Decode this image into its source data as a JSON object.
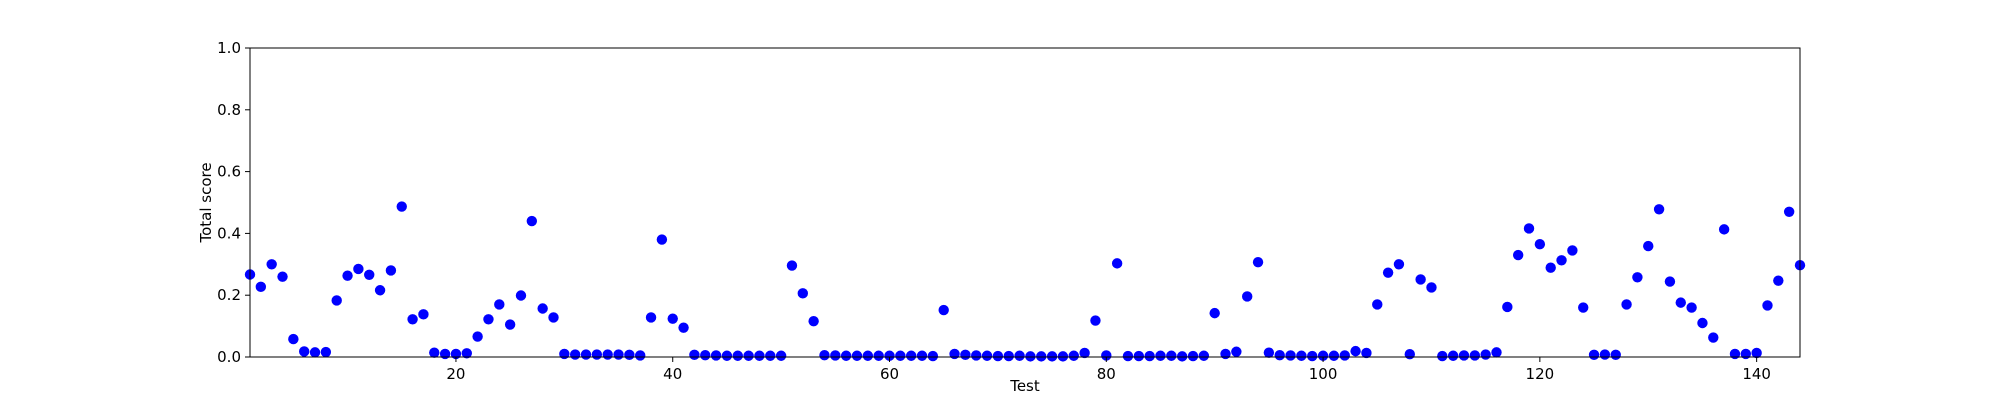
{
  "chart_data": {
    "type": "scatter",
    "title": "",
    "xlabel": "Test",
    "ylabel": "Total score",
    "xlim": [
      1,
      144
    ],
    "ylim": [
      0,
      1
    ],
    "xticks": [
      20,
      40,
      60,
      80,
      100,
      120,
      140
    ],
    "yticks": [
      0.0,
      0.2,
      0.4,
      0.6,
      0.8,
      1.0
    ],
    "ytick_labels": [
      "0.0",
      "0.2",
      "0.4",
      "0.6",
      "0.8",
      "1.0"
    ],
    "grid": false,
    "marker_color": "#0000ff",
    "x": [
      1,
      2,
      3,
      4,
      5,
      6,
      7,
      8,
      9,
      10,
      11,
      12,
      13,
      14,
      15,
      16,
      17,
      18,
      19,
      20,
      21,
      22,
      23,
      24,
      25,
      26,
      27,
      28,
      29,
      30,
      31,
      32,
      33,
      34,
      35,
      36,
      37,
      38,
      39,
      40,
      41,
      42,
      43,
      44,
      45,
      46,
      47,
      48,
      49,
      50,
      51,
      52,
      53,
      54,
      55,
      56,
      57,
      58,
      59,
      60,
      61,
      62,
      63,
      64,
      65,
      66,
      67,
      68,
      69,
      70,
      71,
      72,
      73,
      74,
      75,
      76,
      77,
      78,
      79,
      80,
      81,
      82,
      83,
      84,
      85,
      86,
      87,
      88,
      89,
      90,
      91,
      92,
      93,
      94,
      95,
      96,
      97,
      98,
      99,
      100,
      101,
      102,
      103,
      104,
      105,
      106,
      107,
      108,
      109,
      110,
      111,
      112,
      113,
      114,
      115,
      116,
      117,
      118,
      119,
      120,
      121,
      122,
      123,
      124,
      125,
      126,
      127,
      128,
      129,
      130,
      131,
      132,
      133,
      134,
      135,
      136,
      137,
      138,
      139,
      140,
      141,
      142,
      143,
      144
    ],
    "y": [
      0.267,
      0.227,
      0.3,
      0.26,
      0.058,
      0.018,
      0.015,
      0.016,
      0.183,
      0.263,
      0.285,
      0.266,
      0.216,
      0.28,
      0.487,
      0.122,
      0.138,
      0.014,
      0.01,
      0.01,
      0.012,
      0.066,
      0.122,
      0.17,
      0.105,
      0.199,
      0.44,
      0.157,
      0.128,
      0.01,
      0.008,
      0.008,
      0.008,
      0.008,
      0.008,
      0.007,
      0.005,
      0.128,
      0.38,
      0.124,
      0.095,
      0.007,
      0.006,
      0.005,
      0.004,
      0.004,
      0.004,
      0.004,
      0.004,
      0.004,
      0.296,
      0.206,
      0.116,
      0.006,
      0.005,
      0.004,
      0.004,
      0.004,
      0.004,
      0.004,
      0.004,
      0.004,
      0.004,
      0.003,
      0.152,
      0.01,
      0.007,
      0.005,
      0.004,
      0.003,
      0.003,
      0.004,
      0.002,
      0.002,
      0.002,
      0.002,
      0.004,
      0.013,
      0.118,
      0.005,
      0.303,
      0.003,
      0.003,
      0.003,
      0.004,
      0.004,
      0.002,
      0.003,
      0.004,
      0.142,
      0.01,
      0.017,
      0.196,
      0.307,
      0.014,
      0.006,
      0.005,
      0.004,
      0.003,
      0.004,
      0.004,
      0.005,
      0.019,
      0.013,
      0.17,
      0.273,
      0.3,
      0.009,
      0.251,
      0.225,
      0.003,
      0.004,
      0.005,
      0.005,
      0.008,
      0.015,
      0.162,
      0.33,
      0.416,
      0.365,
      0.289,
      0.313,
      0.345,
      0.16,
      0.007,
      0.008,
      0.007,
      0.17,
      0.258,
      0.359,
      0.478,
      0.244,
      0.176,
      0.16,
      0.11,
      0.063,
      0.413,
      0.01,
      0.01,
      0.013,
      0.167,
      0.247,
      0.47,
      0.297
    ]
  }
}
